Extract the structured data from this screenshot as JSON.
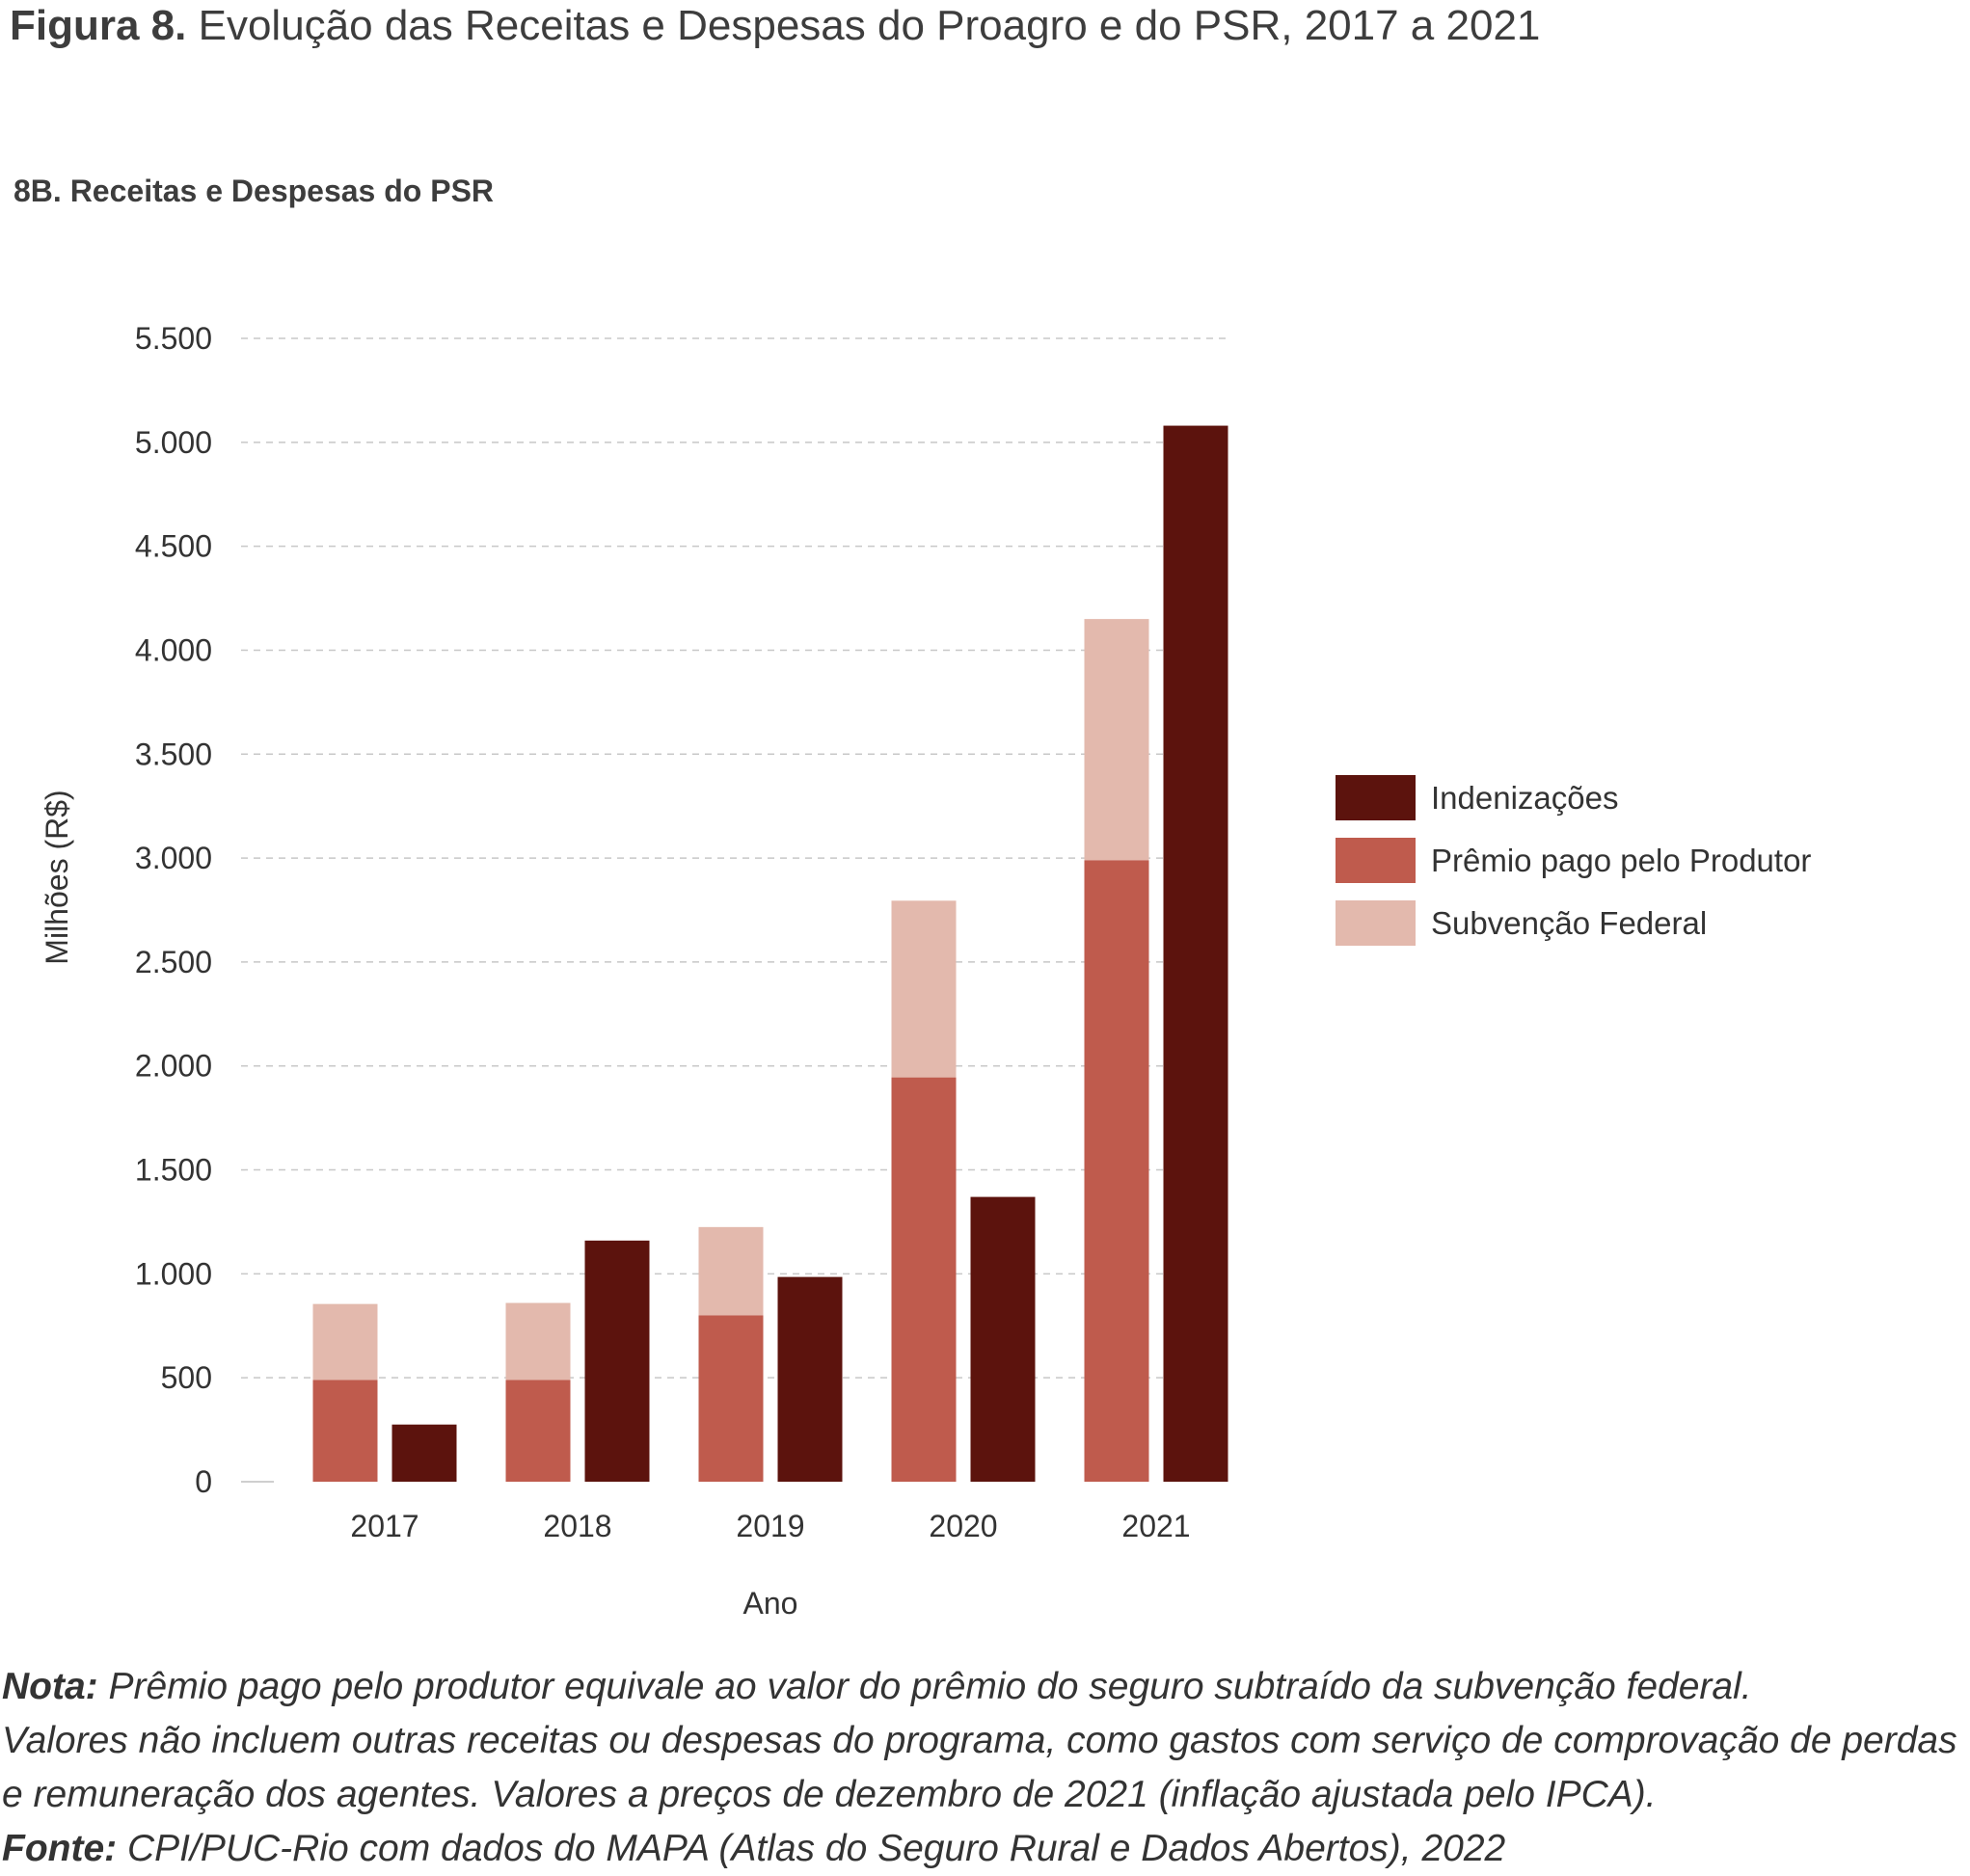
{
  "figure": {
    "label": "Figura 8.",
    "title": "Evolução das Receitas e Despesas do Proagro e do PSR, 2017 a 2021",
    "panel_title": "8B. Receitas e Despesas do PSR"
  },
  "chart_data": {
    "type": "bar",
    "subtype": "grouped-stacked",
    "categories": [
      "2017",
      "2018",
      "2019",
      "2020",
      "2021"
    ],
    "xlabel": "Ano",
    "ylabel": "Milhões (R$)",
    "ylim": [
      0,
      5500
    ],
    "yticks": [
      0,
      500,
      1000,
      1500,
      2000,
      2500,
      3000,
      3500,
      4000,
      4500,
      5000,
      5500
    ],
    "ytick_labels": [
      "0",
      "500",
      "1.000",
      "1.500",
      "2.000",
      "2.500",
      "3.000",
      "3.500",
      "4.000",
      "4.500",
      "5.000",
      "5.500"
    ],
    "grid": "horizontal dashed",
    "legend_position": "right",
    "series": [
      {
        "name": "Prêmio pago pelo Produtor",
        "stack": "receitas",
        "color": "#bf5b4d",
        "values": [
          490,
          490,
          800,
          1945,
          2990
        ]
      },
      {
        "name": "Subvenção Federal",
        "stack": "receitas",
        "color": "#e3b9ad",
        "values": [
          365,
          370,
          425,
          850,
          1160
        ]
      },
      {
        "name": "Indenizações",
        "stack": "despesas",
        "color": "#5c130d",
        "values": [
          275,
          1160,
          985,
          1370,
          5080
        ]
      }
    ],
    "legend": [
      "Indenizações",
      "Prêmio pago pelo Produtor",
      "Subvenção Federal"
    ]
  },
  "footer": {
    "nota_label": "Nota:",
    "nota_line1": "Prêmio pago pelo produtor equivale ao valor do prêmio do seguro subtraído da subvenção federal.",
    "nota_line2": "Valores não incluem outras receitas ou despesas do programa, como gastos com serviço de comprovação de perdas",
    "nota_line3": "e remuneração dos agentes. Valores a preços de dezembro de 2021 (inflação ajustada pelo IPCA).",
    "fonte_label": "Fonte:",
    "fonte_text": "CPI/PUC-Rio com dados do MAPA (Atlas do Seguro Rural e Dados Abertos), 2022"
  }
}
